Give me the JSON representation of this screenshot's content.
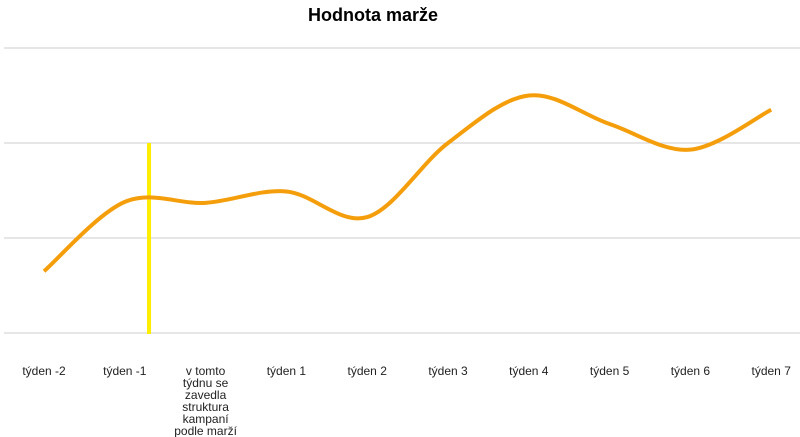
{
  "chart_data": {
    "type": "line",
    "title": "Hodnota marže",
    "xlabel": "",
    "ylabel": "",
    "categories": [
      "týden -2",
      "týden -1",
      "v tomto týdnu se zavedla struktura kampaní podle marží",
      "týden 1",
      "týden 2",
      "týden 3",
      "týden 4",
      "týden 5",
      "týden 6",
      "týden 7"
    ],
    "series": [
      {
        "values": [
          0.65,
          1.38,
          1.37,
          1.49,
          1.22,
          2.0,
          2.5,
          2.2,
          1.93,
          2.35
        ],
        "color": "#f59e0b"
      }
    ],
    "ylim": [
      0,
      3
    ],
    "grid": true,
    "legend": "none",
    "annotation": {
      "type": "vertical-marker",
      "between_categories": [
        1,
        2
      ],
      "color": "#ffee00"
    }
  }
}
